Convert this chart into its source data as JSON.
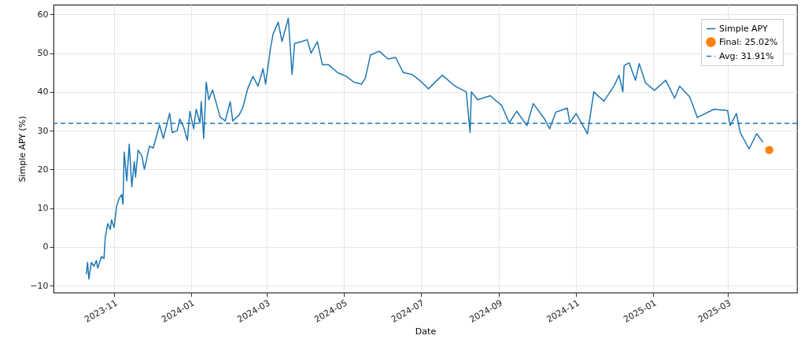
{
  "chart_data": {
    "type": "line",
    "xlabel": "Date",
    "ylabel": "Simple APY (%)",
    "series": [
      {
        "name": "Simple APY",
        "type": "line",
        "color": "#1f77b4",
        "x": [
          "2023-10-10",
          "2023-10-11",
          "2023-10-12",
          "2023-10-14",
          "2023-10-16",
          "2023-10-18",
          "2023-10-19",
          "2023-10-22",
          "2023-10-24",
          "2023-10-25",
          "2023-10-27",
          "2023-10-29",
          "2023-10-30",
          "2023-11-01",
          "2023-11-03",
          "2023-11-05",
          "2023-11-07",
          "2023-11-08",
          "2023-11-09",
          "2023-11-11",
          "2023-11-13",
          "2023-11-15",
          "2023-11-17",
          "2023-11-18",
          "2023-11-20",
          "2023-11-23",
          "2023-11-25",
          "2023-11-27",
          "2023-11-29",
          "2023-12-02",
          "2023-12-07",
          "2023-12-10",
          "2023-12-15",
          "2023-12-17",
          "2023-12-21",
          "2023-12-23",
          "2023-12-26",
          "2023-12-29",
          "2023-12-31",
          "2024-01-03",
          "2024-01-05",
          "2024-01-08",
          "2024-01-09",
          "2024-01-11",
          "2024-01-13",
          "2024-01-15",
          "2024-01-18",
          "2024-01-21",
          "2024-01-24",
          "2024-01-28",
          "2024-02-01",
          "2024-02-03",
          "2024-02-08",
          "2024-02-11",
          "2024-02-15",
          "2024-02-19",
          "2024-02-23",
          "2024-02-27",
          "2024-02-29",
          "2024-03-04",
          "2024-03-06",
          "2024-03-10",
          "2024-03-13",
          "2024-03-18",
          "2024-03-21",
          "2024-03-23",
          "2024-03-29",
          "2024-04-02",
          "2024-04-05",
          "2024-04-10",
          "2024-04-14",
          "2024-04-19",
          "2024-04-26",
          "2024-05-03",
          "2024-05-09",
          "2024-05-15",
          "2024-05-18",
          "2024-05-22",
          "2024-05-29",
          "2024-06-05",
          "2024-06-11",
          "2024-06-17",
          "2024-06-24",
          "2024-06-30",
          "2024-07-07",
          "2024-07-18",
          "2024-07-28",
          "2024-08-06",
          "2024-08-09",
          "2024-08-10",
          "2024-08-15",
          "2024-08-25",
          "2024-09-03",
          "2024-09-09",
          "2024-09-15",
          "2024-09-23",
          "2024-09-28",
          "2024-10-07",
          "2024-10-11",
          "2024-10-16",
          "2024-10-25",
          "2024-10-27",
          "2024-11-01",
          "2024-11-10",
          "2024-11-15",
          "2024-11-23",
          "2024-12-01",
          "2024-12-05",
          "2024-12-08",
          "2024-12-09",
          "2024-12-13",
          "2024-12-18",
          "2024-12-21",
          "2024-12-26",
          "2025-01-02",
          "2025-01-11",
          "2025-01-18",
          "2025-01-22",
          "2025-01-30",
          "2025-02-05",
          "2025-02-18",
          "2025-03-01",
          "2025-03-03",
          "2025-03-08",
          "2025-03-11",
          "2025-03-18",
          "2025-03-24",
          "2025-03-29"
        ],
        "values": [
          -7,
          -4,
          -8.3,
          -4,
          -5,
          -3.5,
          -5.5,
          -2.5,
          -3,
          2.5,
          6,
          4.5,
          7,
          5,
          10.5,
          12.5,
          13.5,
          11,
          24.5,
          17,
          26.5,
          15.5,
          22,
          18,
          25,
          23.5,
          20,
          23,
          26,
          25.5,
          31.5,
          28,
          34.5,
          29.5,
          30,
          33,
          31,
          27.5,
          35,
          30.5,
          35.5,
          32,
          37.5,
          28,
          42.5,
          38,
          40.5,
          37,
          33.5,
          32.5,
          37.5,
          32.5,
          34,
          36,
          41,
          44,
          41.5,
          46,
          42,
          51.5,
          55,
          58,
          53,
          59,
          44.5,
          52.5,
          53,
          53.5,
          50,
          53,
          47,
          47,
          45,
          44,
          42.5,
          42,
          43.5,
          49.5,
          50.5,
          48.5,
          48.9,
          45,
          44.5,
          43,
          40.8,
          44.3,
          41.5,
          40,
          29.5,
          40,
          38,
          39,
          36.5,
          32,
          35,
          31.3,
          37,
          33,
          30.5,
          34.8,
          35.8,
          32,
          34.4,
          29.2,
          40,
          37.6,
          41.5,
          44.3,
          40,
          46.8,
          47.5,
          43,
          47.3,
          42.3,
          40.4,
          43,
          38.4,
          41.5,
          38.7,
          33.4,
          35.5,
          35.2,
          31.3,
          34.4,
          29.5,
          25.3,
          29.2,
          27
        ]
      },
      {
        "name": "Final: 25.02%",
        "type": "scatter",
        "marker": "circle",
        "color": "#ff7f0e",
        "x": [
          "2025-04-03"
        ],
        "values": [
          25.02
        ]
      }
    ],
    "ref_lines": [
      {
        "axis": "y",
        "value": 31.91,
        "label": "Avg: 31.91%",
        "color": "#1f77b4",
        "line_style": "dashed"
      }
    ],
    "xlim": [
      "2023-09-14",
      "2025-04-25"
    ],
    "xticks": [
      {
        "value": "2023-11-01",
        "label": "2023-11"
      },
      {
        "value": "2024-01-01",
        "label": "2024-01"
      },
      {
        "value": "2024-03-01",
        "label": "2024-03"
      },
      {
        "value": "2024-05-01",
        "label": "2024-05"
      },
      {
        "value": "2024-07-01",
        "label": "2024-07"
      },
      {
        "value": "2024-09-01",
        "label": "2024-09"
      },
      {
        "value": "2024-11-01",
        "label": "2024-11"
      },
      {
        "value": "2025-01-01",
        "label": "2025-01"
      },
      {
        "value": "2025-03-01",
        "label": "2025-03"
      }
    ],
    "ylim": [
      -11.8,
      62.5
    ],
    "yticks": [
      -10,
      0,
      10,
      20,
      30,
      40,
      50,
      60
    ],
    "grid": true,
    "legend": "top right"
  }
}
